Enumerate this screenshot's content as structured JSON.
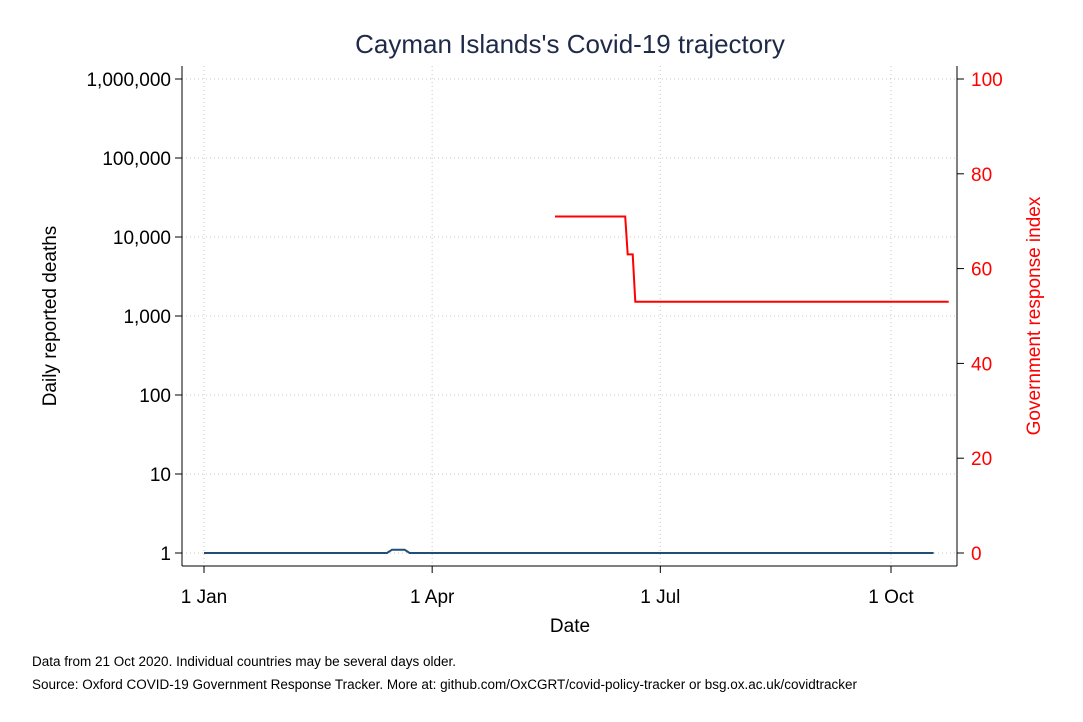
{
  "chart_data": {
    "type": "line",
    "title": "Cayman Islands's Covid-19 trajectory",
    "xlabel": "Date",
    "ylabel_left": "Daily reported deaths",
    "ylabel_right": "Government response index",
    "x_ticks": [
      {
        "date": "2020-01-01",
        "label": "1 Jan"
      },
      {
        "date": "2020-04-01",
        "label": "1 Apr"
      },
      {
        "date": "2020-07-01",
        "label": "1 Jul"
      },
      {
        "date": "2020-10-01",
        "label": "1 Oct"
      }
    ],
    "y_left": {
      "scale": "log",
      "range": [
        1,
        1000000
      ],
      "ticks": [
        {
          "value": 1,
          "label": "1"
        },
        {
          "value": 10,
          "label": "10"
        },
        {
          "value": 100,
          "label": "100"
        },
        {
          "value": 1000,
          "label": "1,000"
        },
        {
          "value": 10000,
          "label": "10,000"
        },
        {
          "value": 100000,
          "label": "100,000"
        },
        {
          "value": 1000000,
          "label": "1,000,000"
        }
      ]
    },
    "y_right": {
      "scale": "linear",
      "range": [
        0,
        100
      ],
      "ticks": [
        {
          "value": 0,
          "label": "0"
        },
        {
          "value": 20,
          "label": "20"
        },
        {
          "value": 40,
          "label": "40"
        },
        {
          "value": 60,
          "label": "60"
        },
        {
          "value": 80,
          "label": "80"
        },
        {
          "value": 100,
          "label": "100"
        }
      ]
    },
    "grid": true,
    "series": [
      {
        "axis": "left",
        "color": "#1f4e79",
        "points": [
          [
            "2020-01-01",
            1
          ],
          [
            "2020-03-14",
            1
          ],
          [
            "2020-03-16",
            1.1
          ],
          [
            "2020-03-21",
            1.1
          ],
          [
            "2020-03-23",
            1
          ],
          [
            "2020-10-18",
            1
          ]
        ]
      },
      {
        "axis": "right",
        "color": "#ff0000",
        "points": [
          [
            "2020-05-20",
            71
          ],
          [
            "2020-06-17",
            71
          ],
          [
            "2020-06-18",
            63
          ],
          [
            "2020-06-20",
            63
          ],
          [
            "2020-06-21",
            53
          ],
          [
            "2020-10-24",
            53
          ]
        ]
      }
    ]
  },
  "footer": {
    "note": "Data from 21 Oct 2020. Individual countries may be several days older.",
    "source": "Source: Oxford COVID-19 Government Response Tracker. More at: github.com/OxCGRT/covid-policy-tracker or bsg.ox.ac.uk/covidtracker"
  }
}
